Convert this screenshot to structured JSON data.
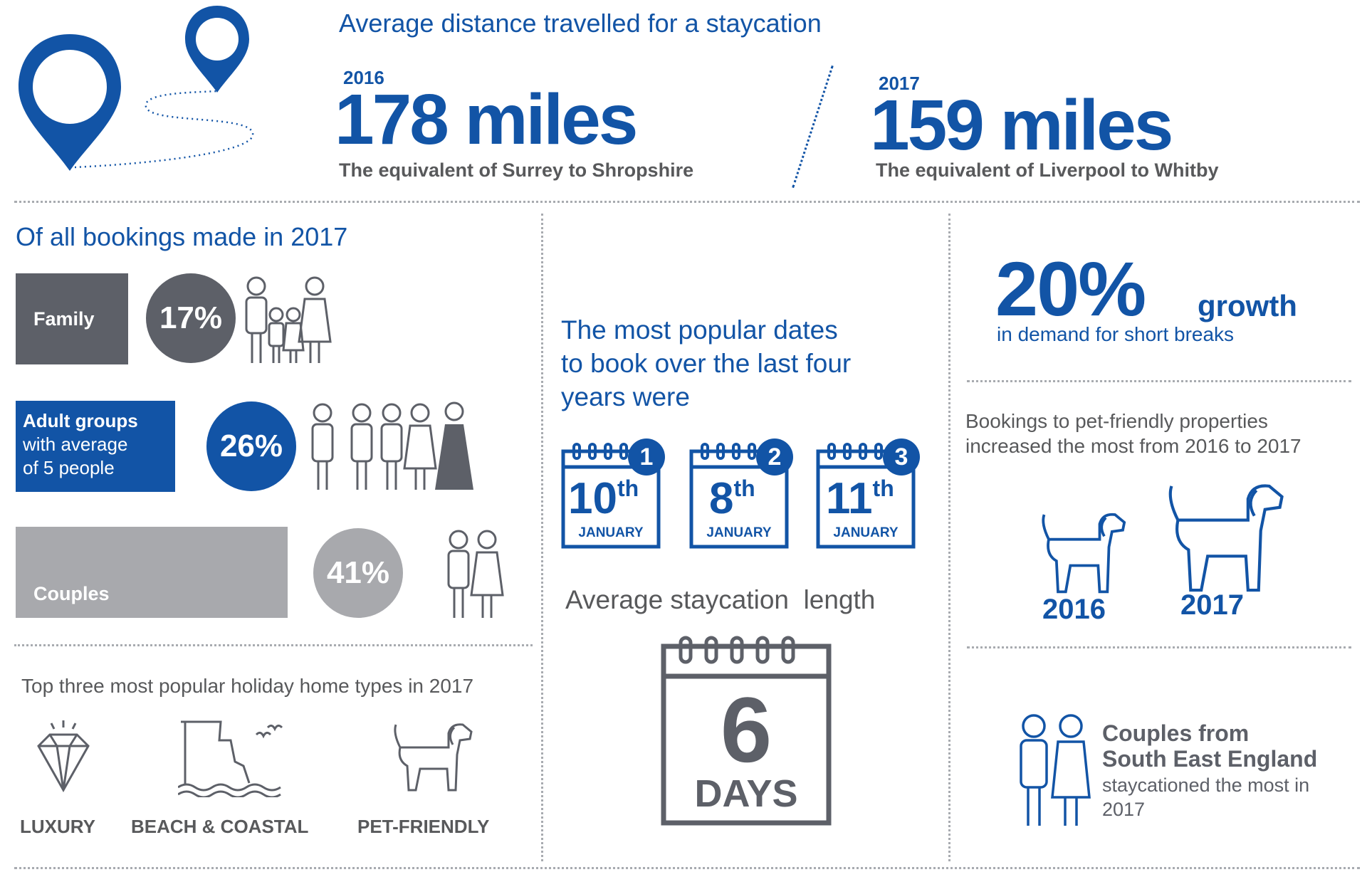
{
  "distance": {
    "title": "Average distance travelled for a staycation",
    "year_2016": "2016",
    "miles_2016": "178 miles",
    "equiv_2016": "The equivalent of Surrey to Shropshire",
    "year_2017": "2017",
    "miles_2017": "159 miles",
    "equiv_2017": "The equivalent of Liverpool to Whitby"
  },
  "bookings": {
    "title": "Of all bookings made in 2017",
    "groups": [
      {
        "label": "Family",
        "percent": "17%",
        "value": 17
      },
      {
        "label": "Adult groups with average of 5 people",
        "label_bold": "Adult groups",
        "label_rest_1": "with average",
        "label_rest_2": "of 5 people",
        "percent": "26%",
        "value": 26
      },
      {
        "label": "Couples",
        "percent": "41%",
        "value": 41
      }
    ]
  },
  "home_types": {
    "title": "Top three most popular holiday home types in 2017",
    "items": [
      {
        "label": "LUXURY",
        "icon": "diamond-icon"
      },
      {
        "label": "BEACH & COASTAL",
        "icon": "cliff-icon"
      },
      {
        "label": "PET-FRIENDLY",
        "icon": "dog-icon"
      }
    ]
  },
  "popular_dates": {
    "title_line1": "The most popular dates",
    "title_line2": "to book over the last four",
    "title_line3": "years were",
    "dates": [
      {
        "rank": "1",
        "day": "10",
        "suffix": "th",
        "month": "JANUARY"
      },
      {
        "rank": "2",
        "day": "8",
        "suffix": "th",
        "month": "JANUARY"
      },
      {
        "rank": "3",
        "day": "11",
        "suffix": "th",
        "month": "JANUARY"
      }
    ]
  },
  "length": {
    "title": "Average staycation  length",
    "number": "6",
    "unit": "DAYS"
  },
  "growth": {
    "percent": "20%",
    "word": "growth",
    "subtitle": "in demand for short breaks"
  },
  "pets": {
    "line1": "Bookings to pet-friendly properties",
    "line2": "increased the most from 2016 to 2017",
    "year_a": "2016",
    "year_b": "2017"
  },
  "couples_se": {
    "line1": "Couples from",
    "line2": "South East England",
    "line3": "staycationed the most in",
    "line4": "2017"
  },
  "colors": {
    "blue": "#1254a6",
    "dark_grey": "#5d6068",
    "light_grey": "#a8a9ad"
  }
}
